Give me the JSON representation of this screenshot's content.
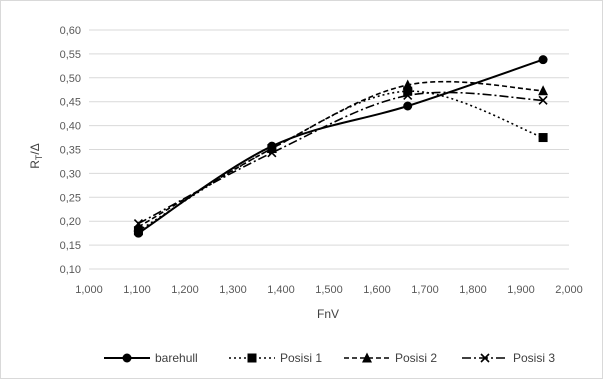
{
  "chart_data": {
    "type": "line",
    "xlabel": "FnV",
    "ylabel": "RT/Δ",
    "ylabel_parts": {
      "main": "R",
      "sub": "T",
      "rest": "/Δ"
    },
    "xlim": [
      1.0,
      2.0
    ],
    "ylim": [
      0.1,
      0.6
    ],
    "x_ticks": [
      "1,000",
      "1,100",
      "1,200",
      "1,300",
      "1,400",
      "1,500",
      "1,600",
      "1,700",
      "1,800",
      "1,900",
      "2,000"
    ],
    "y_ticks": [
      "0,10",
      "0,15",
      "0,20",
      "0,25",
      "0,30",
      "0,35",
      "0,40",
      "0,45",
      "0,50",
      "0,55",
      "0,60"
    ],
    "grid": "horizontal",
    "legend": "bottom",
    "series": [
      {
        "name": "barehull",
        "marker": "circle",
        "dash": "",
        "x": [
          1.103,
          1.381,
          1.664,
          1.946
        ],
        "y": [
          0.175,
          0.357,
          0.441,
          0.538
        ]
      },
      {
        "name": "Posisi 1",
        "marker": "square",
        "dash": "2,3",
        "x": [
          1.103,
          1.381,
          1.664,
          1.946
        ],
        "y": [
          0.18,
          0.352,
          0.472,
          0.375
        ]
      },
      {
        "name": "Posisi 2",
        "marker": "triangle",
        "dash": "5,3",
        "x": [
          1.103,
          1.381,
          1.664,
          1.946
        ],
        "y": [
          0.188,
          0.352,
          0.485,
          0.473
        ]
      },
      {
        "name": "Posisi 3",
        "marker": "x",
        "dash": "9,3,2,3",
        "x": [
          1.103,
          1.381,
          1.664,
          1.946
        ],
        "y": [
          0.195,
          0.343,
          0.463,
          0.453
        ]
      }
    ]
  }
}
